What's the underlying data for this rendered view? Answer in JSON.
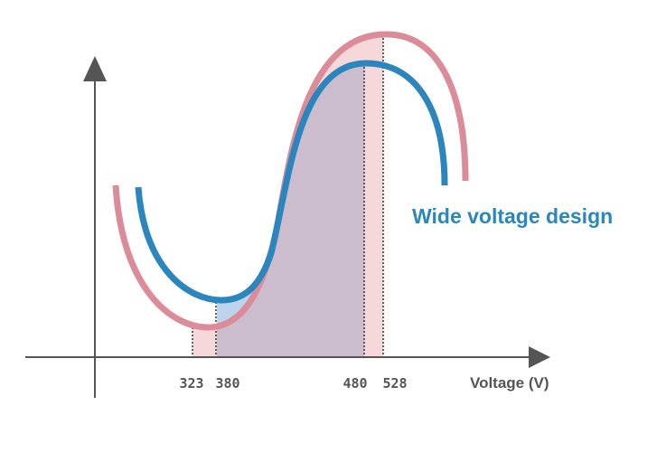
{
  "annotation": "Wide voltage design",
  "x_axis": {
    "label": "Voltage (V)",
    "ticks": [
      323,
      380,
      480,
      528
    ]
  }
}
